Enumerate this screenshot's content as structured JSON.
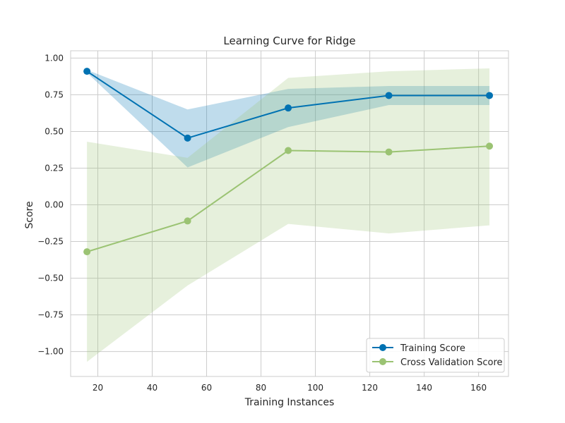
{
  "chart_data": {
    "type": "line",
    "title": "Learning Curve for Ridge",
    "xlabel": "Training Instances",
    "ylabel": "Score",
    "xlim": [
      10,
      171
    ],
    "ylim": [
      -1.17,
      1.05
    ],
    "xticks": [
      20,
      40,
      60,
      80,
      100,
      120,
      140,
      160
    ],
    "yticks": [
      1.0,
      0.75,
      0.5,
      0.25,
      0.0,
      -0.25,
      -0.5,
      -0.75,
      -1.0
    ],
    "xtick_labels": [
      "20",
      "40",
      "60",
      "80",
      "100",
      "120",
      "140",
      "160"
    ],
    "ytick_labels": [
      "1.00",
      "0.75",
      "0.50",
      "0.25",
      "0.00",
      "−0.25",
      "−0.50",
      "−0.75",
      "−1.00"
    ],
    "grid": true,
    "legend_position": "bottom-right",
    "x": [
      16,
      53,
      90,
      127,
      164
    ],
    "series": [
      {
        "name": "Training Score",
        "color": "#0072B2",
        "values": [
          0.91,
          0.455,
          0.66,
          0.745,
          0.745
        ],
        "band_upper": [
          0.92,
          0.65,
          0.79,
          0.81,
          0.81
        ],
        "band_lower": [
          0.9,
          0.255,
          0.53,
          0.68,
          0.68
        ]
      },
      {
        "name": "Cross Validation Score",
        "color": "#9BC373",
        "values": [
          -0.32,
          -0.11,
          0.37,
          0.36,
          0.4
        ],
        "band_upper": [
          0.43,
          0.32,
          0.865,
          0.91,
          0.93
        ],
        "band_lower": [
          -1.07,
          -0.55,
          -0.13,
          -0.195,
          -0.14
        ]
      }
    ]
  }
}
